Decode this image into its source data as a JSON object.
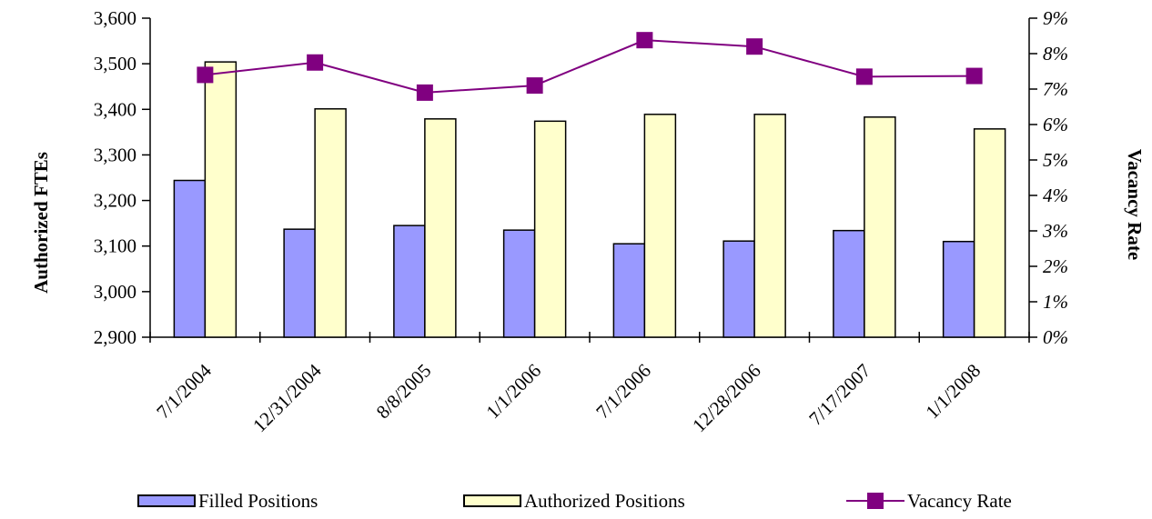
{
  "chart_data": {
    "type": "bar",
    "categories": [
      "7/1/2004",
      "12/31/2004",
      "8/8/2005",
      "1/1/2006",
      "7/1/2006",
      "12/28/2006",
      "7/17/2007",
      "1/1/2008"
    ],
    "series": [
      {
        "name": "Filled Positions",
        "type": "bar",
        "axis": "left",
        "color": "#9999ff",
        "values": [
          3244,
          3137,
          3145,
          3135,
          3105,
          3111,
          3134,
          3110
        ]
      },
      {
        "name": "Authorized Positions",
        "type": "bar",
        "axis": "left",
        "color": "#ffffcc",
        "values": [
          3504,
          3401,
          3379,
          3374,
          3389,
          3389,
          3383,
          3357
        ]
      },
      {
        "name": "Vacancy Rate",
        "type": "line",
        "axis": "right",
        "color": "#800080",
        "values": [
          0.074,
          0.0775,
          0.069,
          0.071,
          0.0838,
          0.082,
          0.0735,
          0.0737
        ]
      }
    ],
    "ylabel": "Authorized FTEs",
    "ylabel_right": "Vacancy Rate",
    "ylim": [
      2900,
      3600
    ],
    "yticks": [
      "2,900",
      "3,000",
      "3,100",
      "3,200",
      "3,300",
      "3,400",
      "3,500",
      "3,600"
    ],
    "ylim_right": [
      0,
      0.09
    ],
    "yticks_right": [
      "0%",
      "1%",
      "2%",
      "3%",
      "4%",
      "5%",
      "6%",
      "7%",
      "8%",
      "9%"
    ],
    "grid": false,
    "legend_position": "bottom"
  }
}
